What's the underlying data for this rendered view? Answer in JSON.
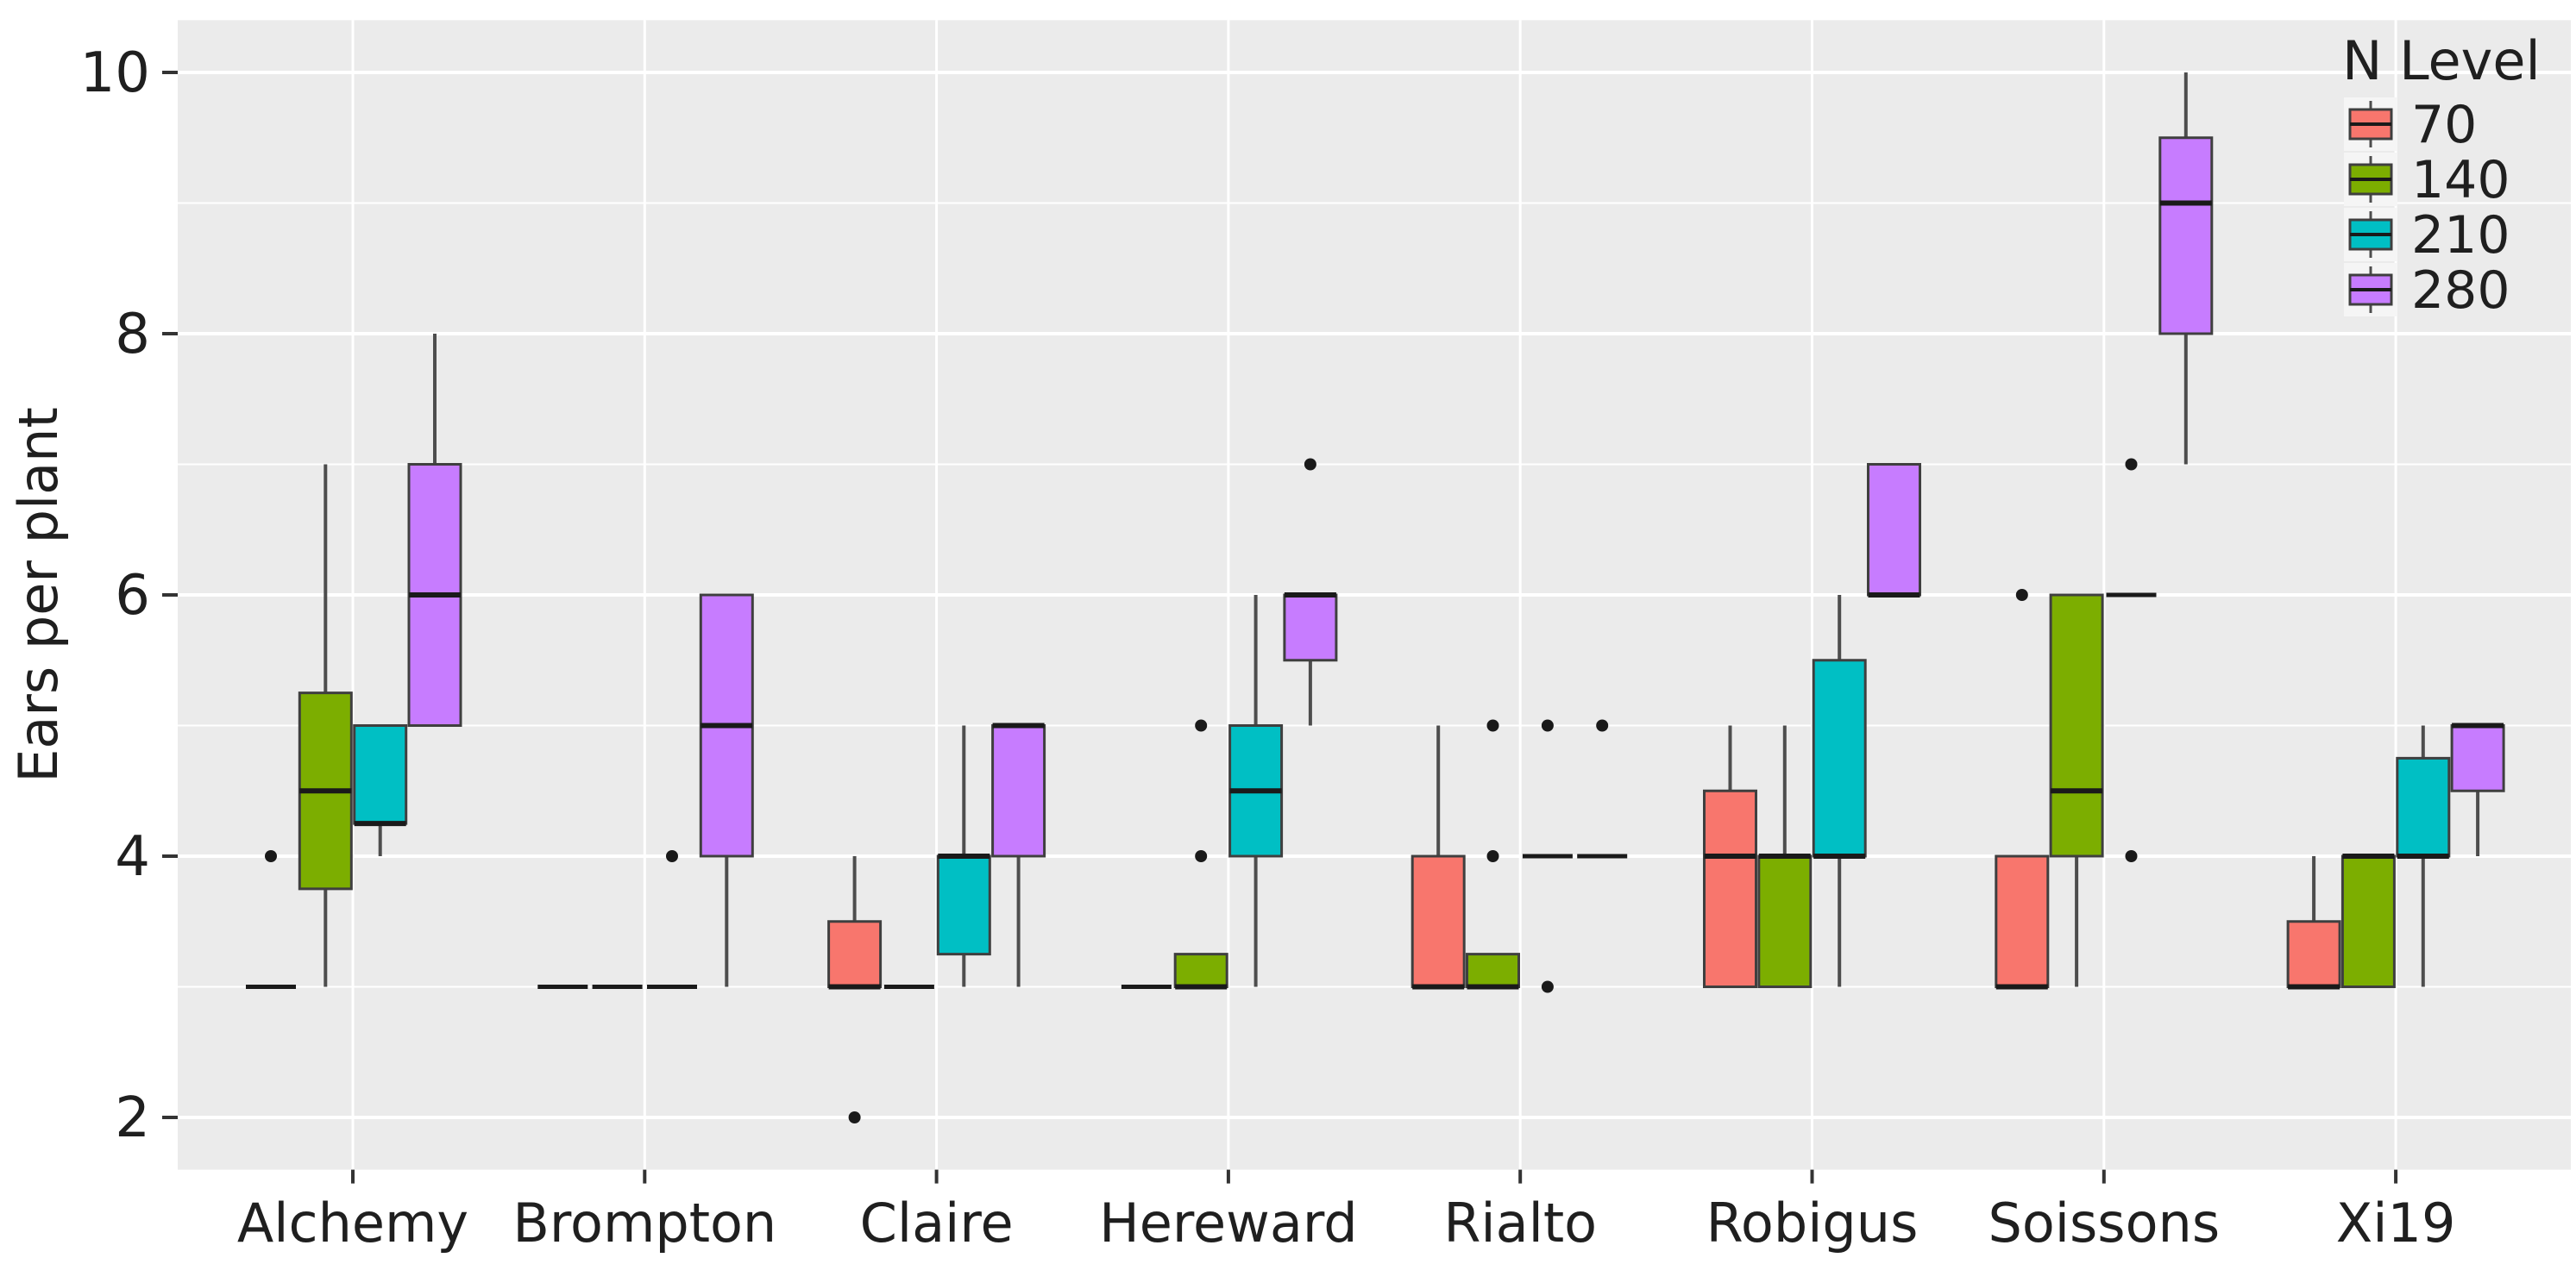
{
  "chart_data": {
    "type": "boxplot",
    "title": "",
    "xlabel": "",
    "ylabel": "Ears per plant",
    "categories": [
      "Alchemy",
      "Brompton",
      "Claire",
      "Hereward",
      "Rialto",
      "Robigus",
      "Soissons",
      "Xi19"
    ],
    "y_ticks": [
      "2",
      "4",
      "6",
      "8",
      "10"
    ],
    "y_tick_values": [
      2,
      4,
      6,
      8,
      10
    ],
    "y_minor_values": [
      3,
      5,
      7,
      9
    ],
    "ylim": [
      1.6,
      10.4
    ],
    "grid": "on",
    "legend": {
      "title": "N Level",
      "position": "top-right-inside",
      "entries": [
        {
          "label": "70",
          "color": "#F8766D"
        },
        {
          "label": "140",
          "color": "#7CAE00"
        },
        {
          "label": "210",
          "color": "#00BFC4"
        },
        {
          "label": "280",
          "color": "#C77CFF"
        }
      ]
    },
    "series": [
      {
        "name": "70",
        "color": "#F8766D",
        "boxes": [
          {
            "min": 3,
            "q1": 3,
            "median": 3,
            "q3": 3,
            "max": 3,
            "outliers": [
              4
            ]
          },
          {
            "min": 3,
            "q1": 3,
            "median": 3,
            "q3": 3,
            "max": 3,
            "outliers": []
          },
          {
            "min": 3,
            "q1": 3,
            "median": 3,
            "q3": 3.5,
            "max": 4,
            "outliers": [
              2
            ]
          },
          {
            "min": 3,
            "q1": 3,
            "median": 3,
            "q3": 3,
            "max": 3,
            "outliers": []
          },
          {
            "min": 3,
            "q1": 3,
            "median": 3,
            "q3": 4,
            "max": 5,
            "outliers": []
          },
          {
            "min": 3,
            "q1": 3,
            "median": 4,
            "q3": 4.5,
            "max": 5,
            "outliers": []
          },
          {
            "min": 3,
            "q1": 3,
            "median": 3,
            "q3": 4,
            "max": 4,
            "outliers": [
              6
            ]
          },
          {
            "min": 3,
            "q1": 3,
            "median": 3,
            "q3": 3.5,
            "max": 4,
            "outliers": []
          }
        ]
      },
      {
        "name": "140",
        "color": "#7CAE00",
        "boxes": [
          {
            "min": 3,
            "q1": 3.75,
            "median": 4.5,
            "q3": 5.25,
            "max": 7,
            "outliers": []
          },
          {
            "min": 3,
            "q1": 3,
            "median": 3,
            "q3": 3,
            "max": 3,
            "outliers": []
          },
          {
            "min": 3,
            "q1": 3,
            "median": 3,
            "q3": 3,
            "max": 3,
            "outliers": []
          },
          {
            "min": 3,
            "q1": 3,
            "median": 3,
            "q3": 3.25,
            "max": 3.25,
            "outliers": [
              4,
              5
            ]
          },
          {
            "min": 3,
            "q1": 3,
            "median": 3,
            "q3": 3.25,
            "max": 3.25,
            "outliers": [
              4,
              5
            ]
          },
          {
            "min": 3,
            "q1": 3,
            "median": 4,
            "q3": 4,
            "max": 5,
            "outliers": []
          },
          {
            "min": 3,
            "q1": 4,
            "median": 4.5,
            "q3": 6,
            "max": 6,
            "outliers": []
          },
          {
            "min": 3,
            "q1": 3,
            "median": 4,
            "q3": 4,
            "max": 4,
            "outliers": []
          }
        ]
      },
      {
        "name": "210",
        "color": "#00BFC4",
        "boxes": [
          {
            "min": 4,
            "q1": 4.25,
            "median": 4.25,
            "q3": 5,
            "max": 5,
            "outliers": []
          },
          {
            "min": 3,
            "q1": 3,
            "median": 3,
            "q3": 3,
            "max": 3,
            "outliers": [
              4
            ]
          },
          {
            "min": 3,
            "q1": 3.25,
            "median": 4,
            "q3": 4,
            "max": 5,
            "outliers": []
          },
          {
            "min": 3,
            "q1": 4,
            "median": 4.5,
            "q3": 5,
            "max": 6,
            "outliers": []
          },
          {
            "min": 4,
            "q1": 4,
            "median": 4,
            "q3": 4,
            "max": 4,
            "outliers": [
              3,
              5
            ]
          },
          {
            "min": 3,
            "q1": 4,
            "median": 4,
            "q3": 5.5,
            "max": 6,
            "outliers": []
          },
          {
            "min": 6,
            "q1": 6,
            "median": 6,
            "q3": 6,
            "max": 6,
            "outliers": [
              4,
              7
            ]
          },
          {
            "min": 3,
            "q1": 4,
            "median": 4,
            "q3": 4.75,
            "max": 5,
            "outliers": []
          }
        ]
      },
      {
        "name": "280",
        "color": "#C77CFF",
        "boxes": [
          {
            "min": 5,
            "q1": 5,
            "median": 6,
            "q3": 7,
            "max": 8,
            "outliers": []
          },
          {
            "min": 3,
            "q1": 4,
            "median": 5,
            "q3": 6,
            "max": 6,
            "outliers": []
          },
          {
            "min": 3,
            "q1": 4,
            "median": 5,
            "q3": 5,
            "max": 5,
            "outliers": []
          },
          {
            "min": 5,
            "q1": 5.5,
            "median": 6,
            "q3": 6,
            "max": 6,
            "outliers": [
              7
            ]
          },
          {
            "min": 4,
            "q1": 4,
            "median": 4,
            "q3": 4,
            "max": 4,
            "outliers": [
              5
            ]
          },
          {
            "min": 6,
            "q1": 6,
            "median": 6,
            "q3": 7,
            "max": 7,
            "outliers": []
          },
          {
            "min": 7,
            "q1": 8,
            "median": 9,
            "q3": 9.5,
            "max": 10,
            "outliers": []
          },
          {
            "min": 4,
            "q1": 4.5,
            "median": 5,
            "q3": 5,
            "max": 5,
            "outliers": []
          }
        ]
      }
    ],
    "colors": {
      "panel_background": "#EBEBEB",
      "grid": "#FFFFFF",
      "box_border": "#3f3f3f",
      "whisker": "#4d4d4d",
      "median": "#1a1a1a",
      "outlier": "#1a1a1a",
      "axis_text": "#1f1f1f",
      "tick_mark": "#333333",
      "legend_key_background": "#F5F5F5",
      "page_background": "#FFFFFF"
    }
  }
}
